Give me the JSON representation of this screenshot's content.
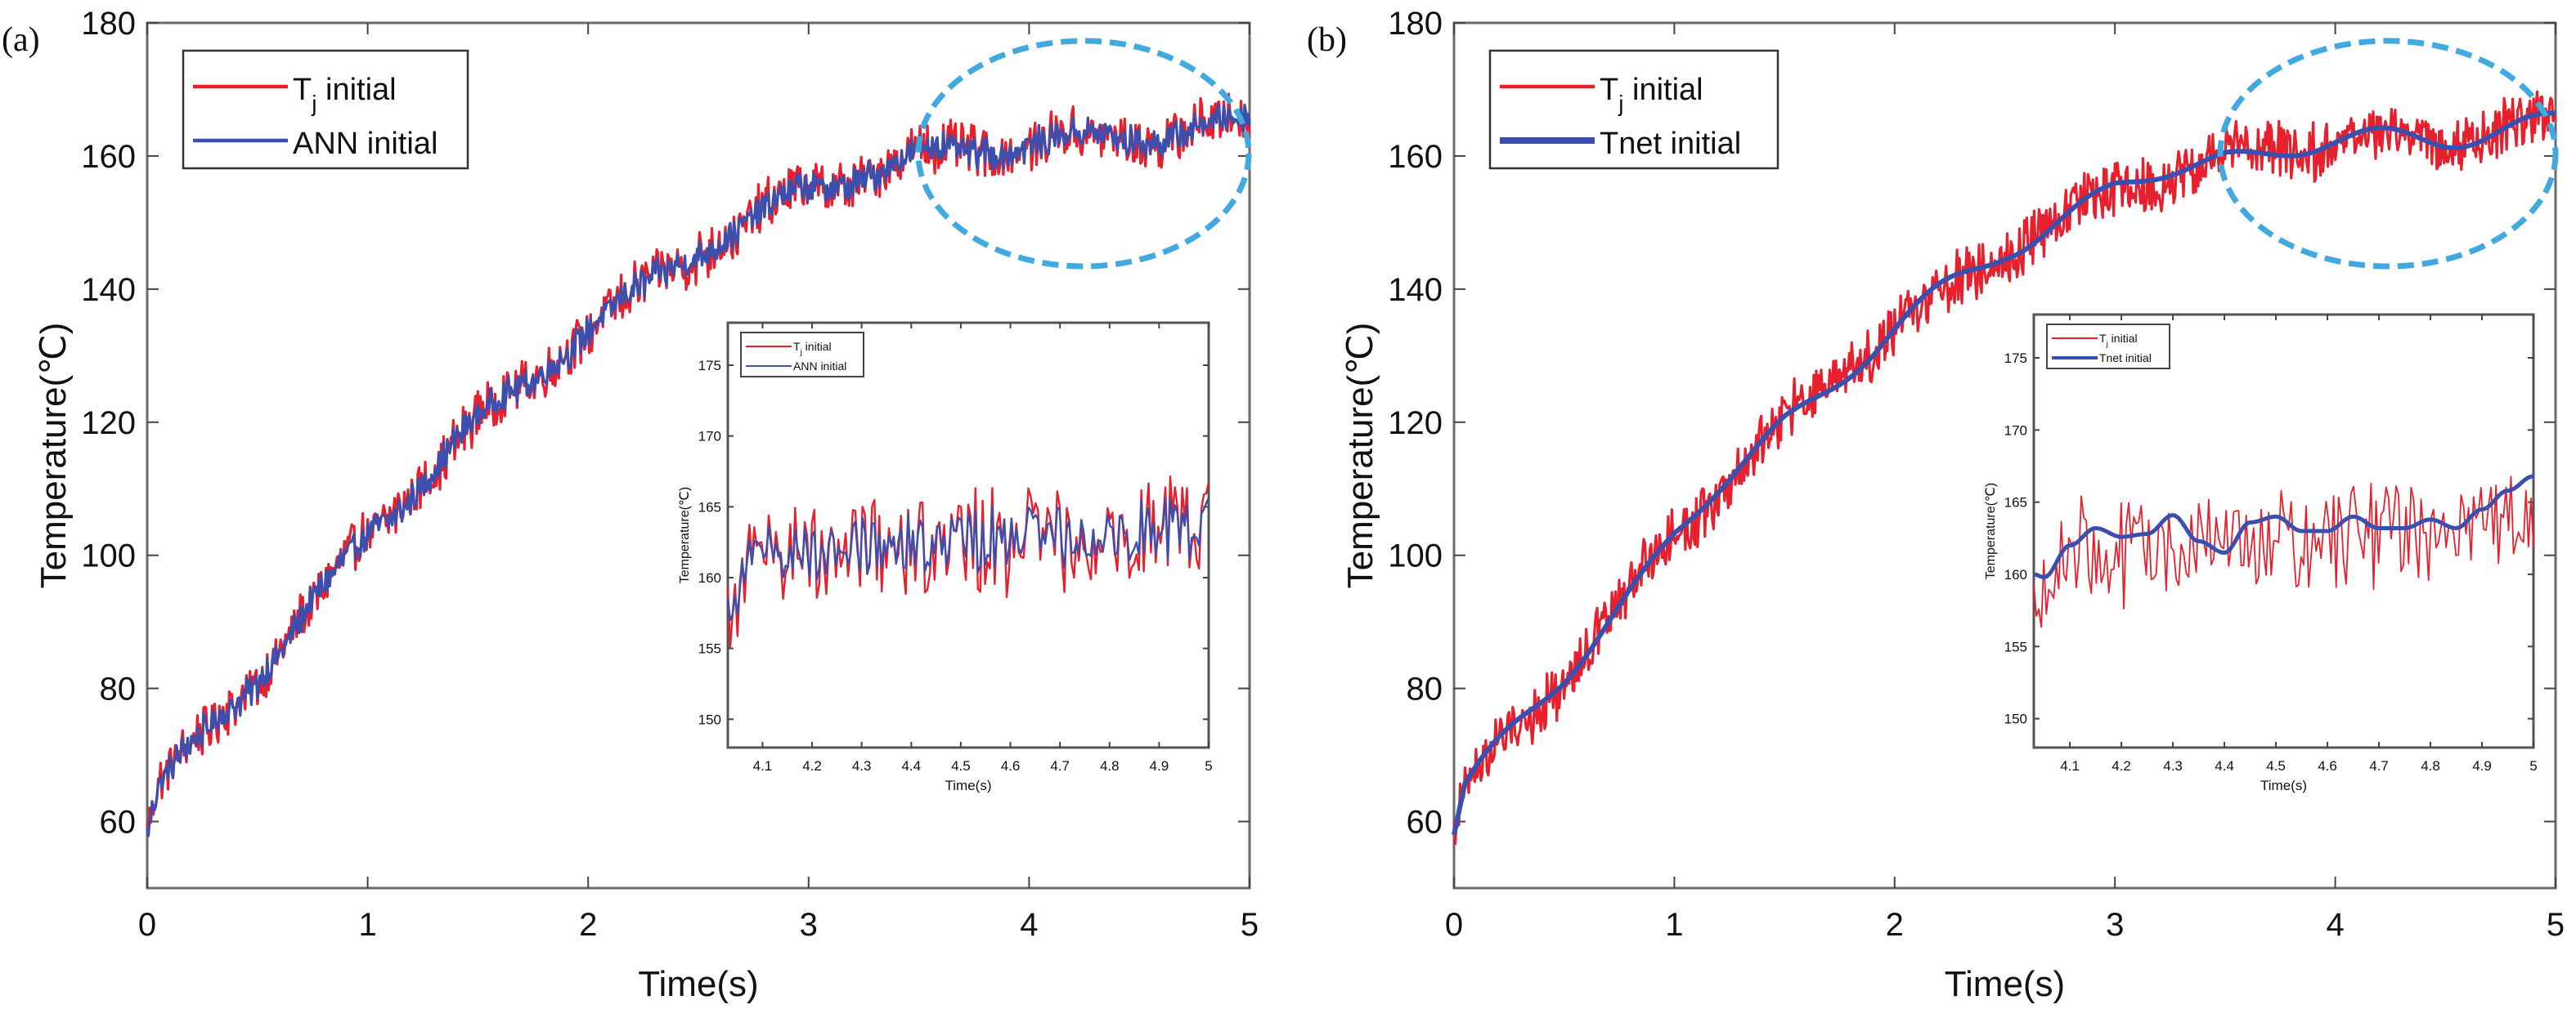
{
  "chart_data": [
    {
      "panel": "(a)",
      "type": "line",
      "xlabel": "Time(s)",
      "ylabel": "Temperature(℃)",
      "xlim": [
        0,
        5
      ],
      "ylim": [
        50,
        180
      ],
      "xticks": [
        0,
        1,
        2,
        3,
        4,
        5
      ],
      "yticks": [
        60,
        80,
        100,
        120,
        140,
        160,
        180
      ],
      "legend": {
        "placement": "top-left",
        "entries": [
          {
            "name": "T",
            "sub": "j",
            "suffix": " initial",
            "color": "#e8202e"
          },
          {
            "name": "ANN initial",
            "sub": "",
            "suffix": "",
            "color": "#3a4fae"
          }
        ]
      },
      "trend": {
        "x": [
          0,
          0.05,
          0.5,
          1,
          1.5,
          2,
          2.5,
          3,
          3.5,
          4,
          4.5,
          5
        ],
        "y": [
          58,
          65,
          82,
          103,
          120,
          134,
          146,
          155,
          160,
          162,
          163,
          165
        ]
      },
      "series": [
        {
          "name": "T_j initial",
          "color": "#e8202e",
          "noise": 3.2
        },
        {
          "name": "ANN initial",
          "color": "#3a4fae",
          "noise": 2.0
        }
      ],
      "highlight": {
        "shape": "dashed-ellipse",
        "color": "#3fa9e0",
        "x_range": [
          3.5,
          5.0
        ],
        "y_range": [
          148,
          176
        ]
      },
      "inset": {
        "xlabel": "Time(s)",
        "ylabel": "Temperature(℃)",
        "xlim": [
          4.03,
          5
        ],
        "ylim": [
          148,
          178
        ],
        "xticks": [
          4.1,
          4.2,
          4.3,
          4.4,
          4.5,
          4.6,
          4.7,
          4.8,
          4.9,
          5
        ],
        "yticks": [
          150,
          155,
          160,
          165,
          170,
          175
        ],
        "legend": [
          {
            "name": "T",
            "sub": "j",
            "suffix": " initial",
            "color": "#e8202e"
          },
          {
            "name": "ANN initial",
            "sub": "",
            "suffix": "",
            "color": "#3a4fae"
          }
        ],
        "series": [
          {
            "name": "T_j initial",
            "color": "#e8202e",
            "mean": 162.5,
            "range": [
              155,
              168.5
            ]
          },
          {
            "name": "ANN initial",
            "color": "#3a4fae",
            "mean": 162.8,
            "range": [
              157,
              168.5
            ]
          }
        ]
      }
    },
    {
      "panel": "(b)",
      "type": "line",
      "xlabel": "Time(s)",
      "ylabel": "Temperature(℃)",
      "xlim": [
        0,
        5
      ],
      "ylim": [
        50,
        180
      ],
      "xticks": [
        0,
        1,
        2,
        3,
        4,
        5
      ],
      "yticks": [
        60,
        80,
        100,
        120,
        140,
        160,
        180
      ],
      "legend": {
        "placement": "top-left",
        "entries": [
          {
            "name": "T",
            "sub": "j",
            "suffix": " initial",
            "color": "#e8202e"
          },
          {
            "name": "Tnet initial",
            "sub": "",
            "suffix": "",
            "color": "#3a4fae"
          }
        ]
      },
      "trend": {
        "x": [
          0,
          0.05,
          0.5,
          1,
          1.5,
          2,
          2.5,
          3,
          3.5,
          4,
          4.5,
          5
        ],
        "y": [
          58,
          65,
          82,
          103,
          120,
          134,
          146,
          155,
          160,
          162,
          163,
          165
        ]
      },
      "series": [
        {
          "name": "T_j initial",
          "color": "#e8202e",
          "noise": 3.6
        },
        {
          "name": "Tnet initial",
          "color": "#3a4fae",
          "noise": 0.6
        }
      ],
      "highlight": {
        "shape": "dashed-ellipse",
        "color": "#3fa9e0",
        "x_range": [
          3.95,
          5.0
        ],
        "y_range": [
          150,
          175
        ]
      },
      "inset": {
        "xlabel": "Time(s)",
        "ylabel": "Temperature(℃)",
        "xlim": [
          4.03,
          5
        ],
        "ylim": [
          148,
          178
        ],
        "xticks": [
          4.1,
          4.2,
          4.3,
          4.4,
          4.5,
          4.6,
          4.7,
          4.8,
          4.9,
          5
        ],
        "yticks": [
          150,
          155,
          160,
          165,
          170,
          175
        ],
        "legend": [
          {
            "name": "T",
            "sub": "j",
            "suffix": " initial",
            "color": "#e8202e"
          },
          {
            "name": "Tnet initial",
            "sub": "",
            "suffix": "",
            "color": "#3a4fae"
          }
        ],
        "series": [
          {
            "name": "T_j initial",
            "color": "#e8202e",
            "mean": 162.5,
            "range": [
              155,
              168.5
            ]
          },
          {
            "name": "Tnet initial",
            "color": "#3a4fae",
            "x": [
              4.03,
              4.05,
              4.1,
              4.15,
              4.2,
              4.25,
              4.3,
              4.35,
              4.4,
              4.45,
              4.5,
              4.55,
              4.6,
              4.65,
              4.7,
              4.75,
              4.8,
              4.85,
              4.9,
              4.95,
              5.0
            ],
            "y": [
              160.0,
              159.8,
              162.0,
              163.2,
              162.6,
              162.8,
              164.1,
              162.3,
              161.5,
              163.6,
              164.0,
              163.0,
              163.0,
              164.0,
              163.2,
              163.2,
              163.8,
              163.2,
              164.5,
              165.8,
              166.8
            ]
          }
        ]
      }
    }
  ]
}
